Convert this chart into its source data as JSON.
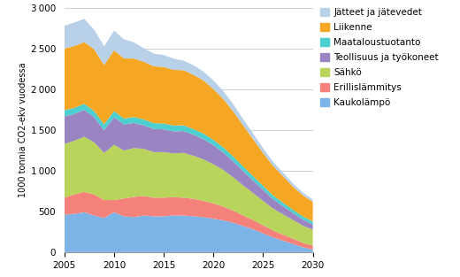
{
  "years": [
    2005,
    2006,
    2007,
    2008,
    2009,
    2010,
    2011,
    2012,
    2013,
    2014,
    2015,
    2016,
    2017,
    2018,
    2019,
    2020,
    2021,
    2022,
    2023,
    2024,
    2025,
    2026,
    2027,
    2028,
    2029,
    2030
  ],
  "series": {
    "Kaukolämpö": [
      460,
      470,
      490,
      450,
      420,
      490,
      440,
      430,
      450,
      440,
      440,
      450,
      450,
      440,
      430,
      410,
      390,
      360,
      320,
      280,
      230,
      180,
      140,
      100,
      60,
      30
    ],
    "Erillislämmitys": [
      210,
      240,
      250,
      260,
      220,
      150,
      220,
      250,
      240,
      230,
      230,
      225,
      220,
      215,
      200,
      190,
      170,
      150,
      130,
      115,
      100,
      85,
      75,
      65,
      55,
      50
    ],
    "Sähkö": [
      660,
      660,
      680,
      640,
      580,
      680,
      590,
      600,
      580,
      560,
      560,
      540,
      550,
      530,
      510,
      480,
      450,
      410,
      370,
      330,
      300,
      270,
      250,
      230,
      210,
      195
    ],
    "Teollisuus ja työkoneet": [
      340,
      330,
      330,
      310,
      280,
      340,
      320,
      310,
      290,
      285,
      280,
      270,
      270,
      260,
      250,
      235,
      215,
      195,
      175,
      155,
      135,
      115,
      100,
      85,
      75,
      65
    ],
    "Maataloustuotanto": [
      75,
      75,
      75,
      75,
      72,
      75,
      73,
      72,
      72,
      72,
      72,
      72,
      70,
      68,
      68,
      65,
      63,
      60,
      57,
      54,
      50,
      47,
      44,
      41,
      39,
      37
    ],
    "Liikenne": [
      760,
      760,
      760,
      760,
      730,
      750,
      740,
      720,
      710,
      700,
      695,
      685,
      678,
      668,
      655,
      625,
      595,
      555,
      505,
      455,
      405,
      365,
      325,
      285,
      260,
      240
    ],
    "Jätteet ja jätevedet": [
      280,
      290,
      285,
      240,
      230,
      240,
      235,
      200,
      165,
      155,
      148,
      138,
      118,
      118,
      108,
      108,
      98,
      88,
      78,
      68,
      58,
      50,
      44,
      38,
      33,
      28
    ]
  },
  "colors": {
    "Kaukolämpö": "#7CB4E8",
    "Erillislämmitys": "#F4827A",
    "Sähkö": "#B8D45A",
    "Teollisuus ja työkoneet": "#9B84C2",
    "Maataloustuotanto": "#4ECFCF",
    "Liikenne": "#F5A623",
    "Jätteet ja jätevedet": "#B8D0E8"
  },
  "ylabel": "1000 tonnia CO2-ekv vuodessa",
  "ylim": [
    0,
    3000
  ],
  "yticks": [
    0,
    500,
    1000,
    1500,
    2000,
    2500,
    3000
  ],
  "xlim": [
    2005,
    2030
  ],
  "xticks": [
    2005,
    2010,
    2015,
    2020,
    2025,
    2030
  ],
  "legend_order": [
    "Jätteet ja jätevedet",
    "Liikenne",
    "Maataloustuotanto",
    "Teollisuus ja työkoneet",
    "Sähkö",
    "Erillislämmitys",
    "Kaukolämpö"
  ],
  "stack_order": [
    "Kaukolämpö",
    "Erillislämmitys",
    "Sähkö",
    "Teollisuus ja työkoneet",
    "Maataloustuotanto",
    "Liikenne",
    "Jätteet ja jätevedet"
  ],
  "figsize": [
    5.2,
    3.13
  ],
  "dpi": 100
}
